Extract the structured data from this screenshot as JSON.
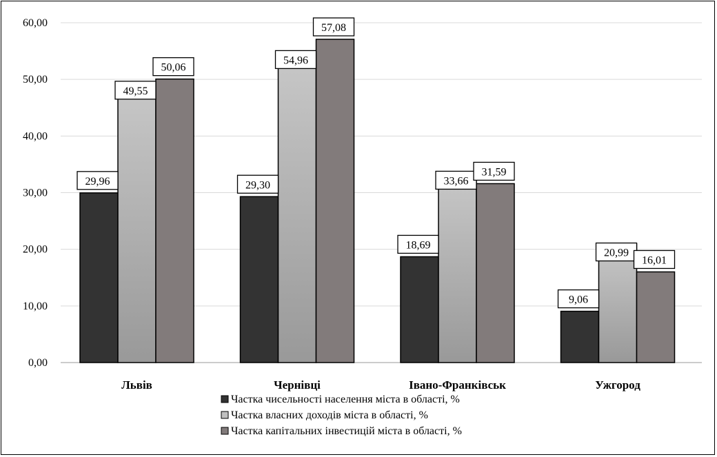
{
  "chart_data": {
    "type": "bar",
    "categories": [
      "Львів",
      "Чернівці",
      "Івано-Франківськ",
      "Ужгород"
    ],
    "series": [
      {
        "name": "Частка чисельності населення міста в області, %",
        "values": [
          29.96,
          29.3,
          18.69,
          9.06
        ],
        "labels": [
          "29,96",
          "29,30",
          "18,69",
          "9,06"
        ],
        "color": "#333333"
      },
      {
        "name": "Частка власних доходів міста в області, %",
        "values": [
          49.55,
          54.96,
          33.66,
          20.99
        ],
        "labels": [
          "49,55",
          "54,96",
          "33,66",
          "20,99"
        ],
        "color": "#b3b3b3"
      },
      {
        "name": "Частка капітальних інвестицій міста в області, %",
        "values": [
          50.06,
          57.08,
          31.59,
          16.01
        ],
        "labels": [
          "50,06",
          "57,08",
          "31,59",
          "16,01"
        ],
        "color": "#827b7b"
      }
    ],
    "ylim": [
      0,
      60
    ],
    "yticks": [
      0,
      10,
      20,
      30,
      40,
      50,
      60
    ],
    "ytick_labels": [
      "0,00",
      "10,00",
      "20,00",
      "30,00",
      "40,00",
      "50,00",
      "60,00"
    ],
    "grid": true,
    "legend_position": "bottom"
  }
}
